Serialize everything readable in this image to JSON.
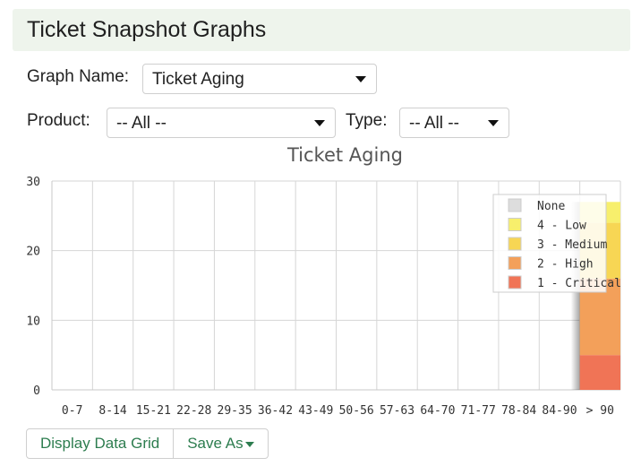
{
  "page": {
    "title": "Ticket Snapshot Graphs"
  },
  "filters": {
    "graph_name_label": "Graph Name:",
    "graph_name_value": "Ticket Aging",
    "product_label": "Product:",
    "product_value": "-- All --",
    "type_label": "Type:",
    "type_value": "-- All --"
  },
  "actions": {
    "display_data_grid": "Display Data Grid",
    "save_as": "Save As"
  },
  "chart_data": {
    "type": "bar",
    "stacked": true,
    "title": "Ticket Aging",
    "xlabel": "",
    "ylabel": "",
    "ylim": [
      0,
      30
    ],
    "yticks": [
      0,
      10,
      20,
      30
    ],
    "grid": true,
    "legend_position": "top-right",
    "categories": [
      "0-7",
      "8-14",
      "15-21",
      "22-28",
      "29-35",
      "36-42",
      "43-49",
      "50-56",
      "57-63",
      "64-70",
      "71-77",
      "78-84",
      "84-90",
      "> 90"
    ],
    "series": [
      {
        "name": "1 - Critical",
        "color": "#f07456",
        "values": [
          0,
          0,
          0,
          0,
          0,
          0,
          0,
          0,
          0,
          0,
          0,
          0,
          0,
          5
        ]
      },
      {
        "name": "2 - High",
        "color": "#f3a05a",
        "values": [
          0,
          0,
          0,
          0,
          0,
          0,
          0,
          0,
          0,
          0,
          0,
          0,
          0,
          11
        ]
      },
      {
        "name": "3 - Medium",
        "color": "#f7d654",
        "values": [
          0,
          0,
          0,
          0,
          0,
          0,
          0,
          0,
          0,
          0,
          0,
          0,
          0,
          8
        ]
      },
      {
        "name": "4 - Low",
        "color": "#f7ef6c",
        "values": [
          0,
          0,
          0,
          0,
          0,
          0,
          0,
          0,
          0,
          0,
          0,
          0,
          0,
          3
        ]
      },
      {
        "name": "None",
        "color": "#dddddd",
        "values": [
          0,
          0,
          0,
          0,
          0,
          0,
          0,
          0,
          0,
          0,
          0,
          0,
          0,
          0
        ]
      }
    ],
    "legend_order": [
      "None",
      "4 - Low",
      "3 - Medium",
      "2 - High",
      "1 - Critical"
    ]
  }
}
